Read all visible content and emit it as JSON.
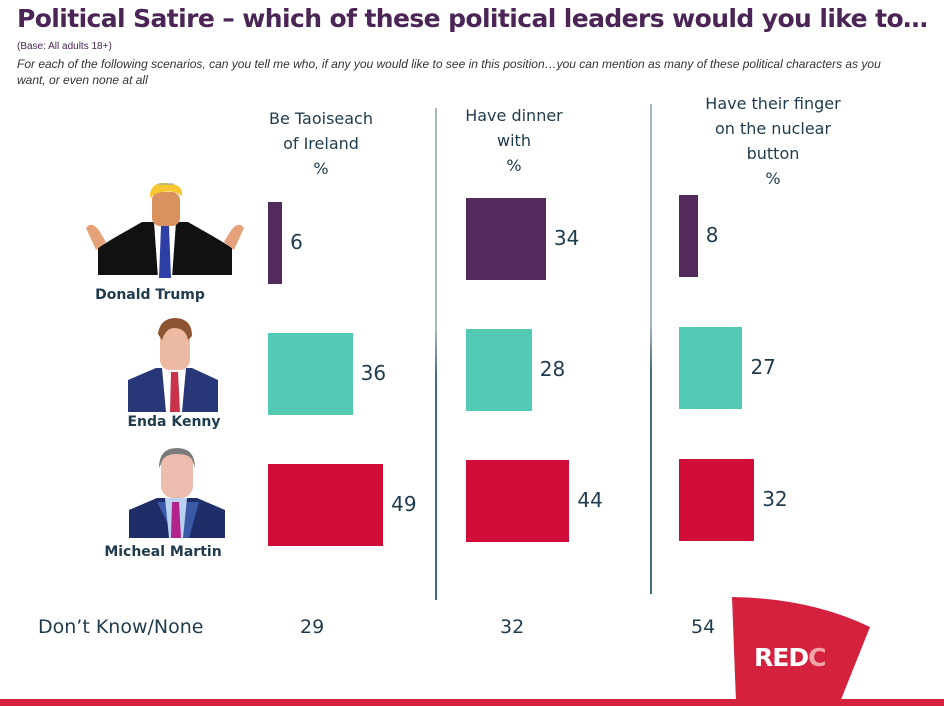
{
  "header": {
    "title": "Political Satire – which of these political leaders would you like to…",
    "base": "(Base: All adults 18+)",
    "question": "For each of the following scenarios, can you tell me who, if any you would like to see in this position…you can mention as many of these political characters as you want, or even none at all"
  },
  "people": [
    {
      "name": "Donald Trump",
      "icon": "donald-trump-caricature"
    },
    {
      "name": "Enda Kenny",
      "icon": "enda-kenny-caricature"
    },
    {
      "name": "Micheal Martin",
      "icon": "micheal-martin-caricature"
    }
  ],
  "chart_data": {
    "type": "bar",
    "orientation": "horizontal",
    "unit": "%",
    "categories": [
      "Donald Trump",
      "Enda Kenny",
      "Micheal Martin"
    ],
    "colors": [
      "#522b5c",
      "#52cab4",
      "#d00d38"
    ],
    "panels": [
      {
        "label_lines": [
          "Be Taoiseach",
          "of Ireland",
          "%"
        ],
        "values": [
          6,
          36,
          49
        ],
        "dont_know": 29
      },
      {
        "label_lines": [
          "Have dinner",
          "with",
          "%"
        ],
        "values": [
          34,
          28,
          44
        ],
        "dont_know": 32
      },
      {
        "label_lines": [
          "Have their finger",
          "on the nuclear",
          "button",
          "%"
        ],
        "values": [
          8,
          27,
          32
        ],
        "dont_know": 54
      }
    ],
    "xlim": [
      0,
      100
    ],
    "grid": false,
    "legend": "none"
  },
  "footer": {
    "dont_know_label": "Don’t Know/None",
    "logo_main": "RED",
    "logo_c": "C"
  }
}
